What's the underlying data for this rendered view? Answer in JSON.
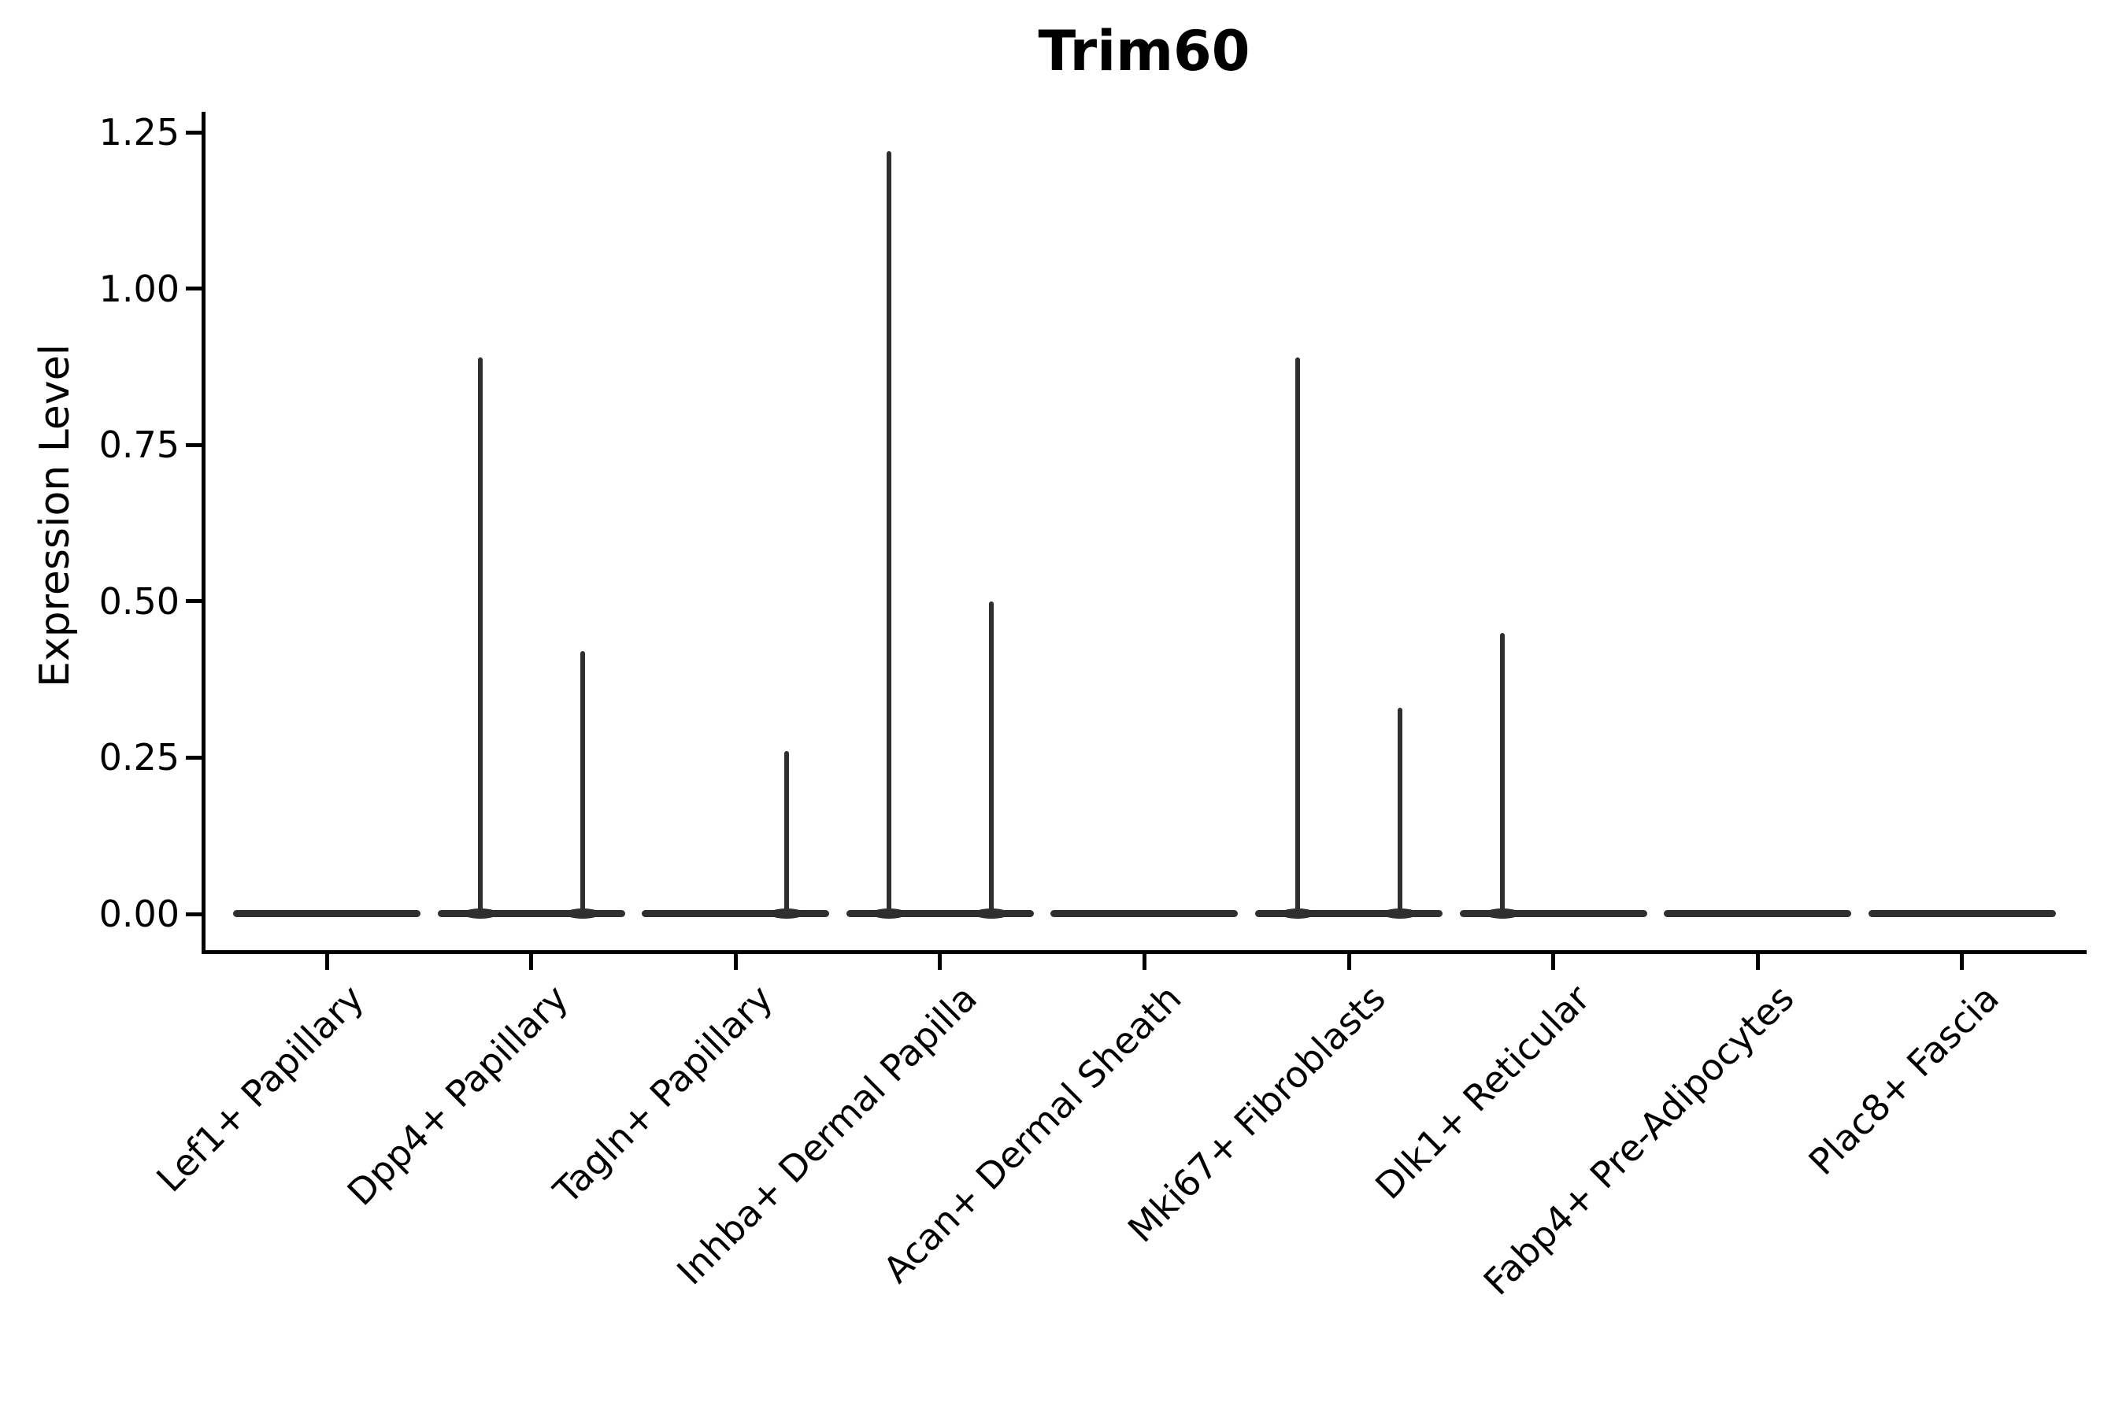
{
  "figure": {
    "title": "Trim60"
  },
  "chart_data": {
    "type": "violin",
    "title": "Trim60",
    "xlabel": "",
    "ylabel": "Expression Level",
    "categories": [
      "Lef1+ Papillary",
      "Dpp4+ Papillary",
      "Tagln+ Papillary",
      "Inhba+ Dermal Papilla",
      "Acan+ Dermal Sheath",
      "Mki67+ Fibroblasts",
      "Dlk1+ Reticular",
      "Fabp4+ Pre-Adipocytes",
      "Plac8+ Fascia"
    ],
    "series": [
      {
        "name": "violin-left",
        "max_expression_values": [
          0,
          0.89,
          0,
          1.22,
          0,
          0.89,
          0.45,
          0,
          0
        ]
      },
      {
        "name": "violin-right",
        "max_expression_values": [
          0,
          0.42,
          0.26,
          0.5,
          0,
          0.33,
          0,
          0,
          0
        ]
      }
    ],
    "ytick_labels": [
      "0.00",
      "0.25",
      "0.50",
      "0.75",
      "1.00",
      "1.25"
    ],
    "ylim": [
      -0.06,
      1.28
    ],
    "grid": false,
    "legend_position": "none",
    "violin_color": "#2f2f2f",
    "axis_color": "#000000",
    "baseline_note": "each category shows two flat violins at 0 merged into one bar; spikes rise at each violin center"
  }
}
